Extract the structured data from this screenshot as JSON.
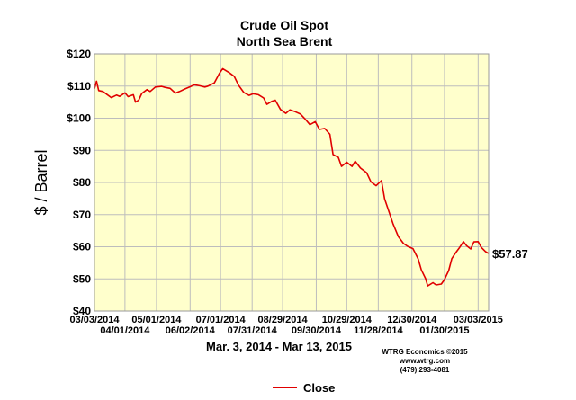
{
  "chart_data": {
    "type": "line",
    "title": "Crude Oil Spot",
    "subtitle": "North Sea Brent",
    "ylabel": "$ / Barrel",
    "ylim": [
      40,
      120
    ],
    "yticks": [
      40,
      50,
      60,
      70,
      80,
      90,
      100,
      110,
      120
    ],
    "ytick_labels": [
      "$40",
      "$50",
      "$60",
      "$70",
      "$80",
      "$90",
      "$100",
      "$110",
      "$120"
    ],
    "xlim": [
      "2014-03-03",
      "2015-03-13"
    ],
    "xtick_labels_upper": [
      {
        "x": "2014-03-03",
        "label": "03/03/2014"
      },
      {
        "x": "2014-05-01",
        "label": "05/01/2014"
      },
      {
        "x": "2014-07-01",
        "label": "07/01/2014"
      },
      {
        "x": "2014-08-29",
        "label": "08/29/2014"
      },
      {
        "x": "2014-10-29",
        "label": "10/29/2014"
      },
      {
        "x": "2014-12-30",
        "label": "12/30/2014"
      },
      {
        "x": "2015-03-03",
        "label": "03/03/2015"
      }
    ],
    "xtick_labels_lower": [
      {
        "x": "2014-04-01",
        "label": "04/01/2014"
      },
      {
        "x": "2014-06-02",
        "label": "06/02/2014"
      },
      {
        "x": "2014-07-31",
        "label": "07/31/2014"
      },
      {
        "x": "2014-09-30",
        "label": "09/30/2014"
      },
      {
        "x": "2014-11-28",
        "label": "11/28/2014"
      },
      {
        "x": "2015-01-30",
        "label": "01/30/2015"
      }
    ],
    "date_range_label": "Mar. 3, 2014 - Mar 13, 2015",
    "last_value_label": "$57.87",
    "grid": true,
    "legend_position": "bottom-center",
    "series": [
      {
        "name": "Close",
        "color": "#e00000",
        "points": [
          [
            "2014-03-03",
            109.2
          ],
          [
            "2014-03-05",
            111.5
          ],
          [
            "2014-03-07",
            108.6
          ],
          [
            "2014-03-11",
            108.3
          ],
          [
            "2014-03-14",
            107.6
          ],
          [
            "2014-03-19",
            106.4
          ],
          [
            "2014-03-24",
            107.2
          ],
          [
            "2014-03-27",
            106.8
          ],
          [
            "2014-04-01",
            107.9
          ],
          [
            "2014-04-04",
            106.7
          ],
          [
            "2014-04-09",
            107.3
          ],
          [
            "2014-04-11",
            105.0
          ],
          [
            "2014-04-14",
            105.6
          ],
          [
            "2014-04-17",
            107.7
          ],
          [
            "2014-04-22",
            108.9
          ],
          [
            "2014-04-25",
            108.3
          ],
          [
            "2014-04-30",
            109.7
          ],
          [
            "2014-05-06",
            109.9
          ],
          [
            "2014-05-09",
            109.6
          ],
          [
            "2014-05-14",
            109.3
          ],
          [
            "2014-05-19",
            107.8
          ],
          [
            "2014-05-23",
            108.3
          ],
          [
            "2014-05-28",
            109.1
          ],
          [
            "2014-06-02",
            109.8
          ],
          [
            "2014-06-06",
            110.4
          ],
          [
            "2014-06-11",
            110.1
          ],
          [
            "2014-06-16",
            109.7
          ],
          [
            "2014-06-19",
            110.0
          ],
          [
            "2014-06-25",
            111.0
          ],
          [
            "2014-06-30",
            114.0
          ],
          [
            "2014-07-03",
            115.4
          ],
          [
            "2014-07-09",
            114.2
          ],
          [
            "2014-07-14",
            113.0
          ],
          [
            "2014-07-18",
            110.3
          ],
          [
            "2014-07-23",
            108.0
          ],
          [
            "2014-07-28",
            107.1
          ],
          [
            "2014-08-01",
            107.6
          ],
          [
            "2014-08-06",
            107.3
          ],
          [
            "2014-08-11",
            106.3
          ],
          [
            "2014-08-14",
            104.3
          ],
          [
            "2014-08-19",
            105.3
          ],
          [
            "2014-08-22",
            105.6
          ],
          [
            "2014-08-27",
            102.7
          ],
          [
            "2014-09-01",
            101.5
          ],
          [
            "2014-09-05",
            102.6
          ],
          [
            "2014-09-10",
            102.0
          ],
          [
            "2014-09-15",
            101.3
          ],
          [
            "2014-09-19",
            99.9
          ],
          [
            "2014-09-24",
            98.0
          ],
          [
            "2014-09-29",
            98.9
          ],
          [
            "2014-10-03",
            96.5
          ],
          [
            "2014-10-08",
            96.8
          ],
          [
            "2014-10-13",
            95.0
          ],
          [
            "2014-10-16",
            88.7
          ],
          [
            "2014-10-21",
            87.8
          ],
          [
            "2014-10-24",
            85.0
          ],
          [
            "2014-10-29",
            86.3
          ],
          [
            "2014-11-03",
            85.0
          ],
          [
            "2014-11-06",
            86.6
          ],
          [
            "2014-11-11",
            84.5
          ],
          [
            "2014-11-17",
            83.0
          ],
          [
            "2014-11-21",
            80.2
          ],
          [
            "2014-11-26",
            79.0
          ],
          [
            "2014-12-01",
            80.6
          ],
          [
            "2014-12-04",
            74.9
          ],
          [
            "2014-12-09",
            70.1
          ],
          [
            "2014-12-12",
            67.2
          ],
          [
            "2014-12-17",
            63.2
          ],
          [
            "2014-12-22",
            61.0
          ],
          [
            "2014-12-26",
            60.1
          ],
          [
            "2014-12-31",
            59.4
          ],
          [
            "2015-01-05",
            56.2
          ],
          [
            "2015-01-08",
            52.8
          ],
          [
            "2015-01-12",
            50.1
          ],
          [
            "2015-01-14",
            47.8
          ],
          [
            "2015-01-19",
            48.8
          ],
          [
            "2015-01-22",
            48.1
          ],
          [
            "2015-01-27",
            48.4
          ],
          [
            "2015-01-30",
            49.8
          ],
          [
            "2015-02-03",
            52.6
          ],
          [
            "2015-02-06",
            56.3
          ],
          [
            "2015-02-10",
            58.3
          ],
          [
            "2015-02-13",
            59.6
          ],
          [
            "2015-02-17",
            61.6
          ],
          [
            "2015-02-20",
            60.3
          ],
          [
            "2015-02-24",
            59.3
          ],
          [
            "2015-02-27",
            61.5
          ],
          [
            "2015-03-03",
            61.6
          ],
          [
            "2015-03-06",
            59.8
          ],
          [
            "2015-03-10",
            58.5
          ],
          [
            "2015-03-13",
            57.87
          ]
        ]
      }
    ]
  },
  "credit": {
    "line1": "WTRG Economics  ©2015",
    "line2": "www.wtrg.com",
    "line3": "(479) 293-4081"
  },
  "colors": {
    "plot_background": "#ffffcc",
    "grid": "#bdbdbd",
    "line": "#e00000"
  }
}
